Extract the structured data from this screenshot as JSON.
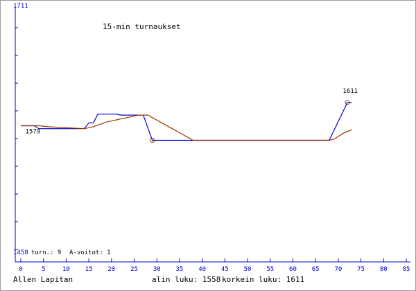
{
  "chart_data": {
    "type": "line",
    "title": "15-min turnaukset",
    "xlim": [
      0,
      85
    ],
    "ylim": [
      1458,
      1711
    ],
    "x_ticks": [
      0,
      5,
      10,
      15,
      20,
      25,
      30,
      35,
      40,
      45,
      50,
      55,
      60,
      65,
      70,
      75,
      80,
      85
    ],
    "y_top_label": "1711",
    "y_bottom_label": "1458",
    "series": [
      {
        "color": "#0000cc",
        "points": [
          [
            0,
            1587
          ],
          [
            3,
            1587
          ],
          [
            4,
            1584
          ],
          [
            14,
            1584
          ],
          [
            15,
            1590
          ],
          [
            16,
            1590
          ],
          [
            17,
            1599
          ],
          [
            21,
            1599
          ],
          [
            22,
            1598
          ],
          [
            27,
            1598
          ],
          [
            29,
            1572
          ],
          [
            38,
            1572
          ],
          [
            68,
            1572
          ],
          [
            71,
            1601
          ],
          [
            72,
            1611
          ],
          [
            73,
            1611
          ]
        ]
      },
      {
        "color": "#993300",
        "points": [
          [
            0,
            1587
          ],
          [
            4,
            1587
          ],
          [
            6,
            1586
          ],
          [
            10,
            1585
          ],
          [
            14,
            1584
          ],
          [
            16,
            1586
          ],
          [
            19,
            1591
          ],
          [
            23,
            1595
          ],
          [
            26,
            1598
          ],
          [
            28,
            1598
          ],
          [
            33,
            1585
          ],
          [
            38,
            1572
          ],
          [
            68,
            1572
          ],
          [
            69,
            1573
          ],
          [
            71,
            1579
          ],
          [
            73,
            1583
          ]
        ]
      }
    ],
    "annotations": [
      {
        "text": "1579",
        "x": 1,
        "y": 1579
      },
      {
        "text": "1611",
        "x": 71,
        "y": 1621
      }
    ],
    "markers": [
      {
        "x": 29,
        "y": 1572,
        "color": "#993300"
      },
      {
        "x": 72,
        "y": 1611,
        "color": "#993300"
      }
    ]
  },
  "stats": {
    "games_label": "turn.: 9",
    "wins_label": "A-voitot: 1"
  },
  "footer": {
    "player": "Allen Lapitan",
    "min_rating": "alin luku: 1558",
    "max_rating": "korkein luku: 1611"
  },
  "colors": {
    "axis": "#0000cc",
    "frame": "#999999",
    "text": "#000000"
  }
}
